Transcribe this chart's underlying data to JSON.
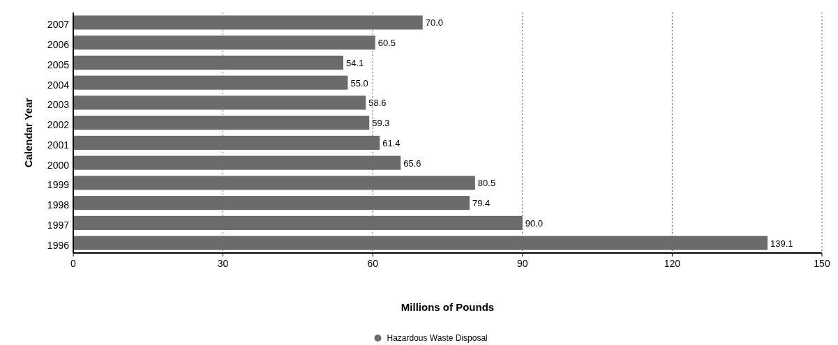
{
  "chart_data": {
    "type": "bar",
    "orientation": "horizontal",
    "xlabel": "Millions of Pounds",
    "ylabel": "Calendar Year",
    "categories": [
      "2007",
      "2006",
      "2005",
      "2004",
      "2003",
      "2002",
      "2001",
      "2000",
      "1999",
      "1998",
      "1997",
      "1996"
    ],
    "series": [
      {
        "name": "Hazardous Waste Disposal",
        "color": "#6b6b6b",
        "values": [
          70.0,
          60.5,
          54.1,
          55.0,
          58.6,
          59.3,
          61.4,
          65.6,
          80.5,
          79.4,
          90.0,
          139.1
        ],
        "value_labels": [
          "70.0",
          "60.5",
          "54.1",
          "55.0",
          "58.6",
          "59.3",
          "61.4",
          "65.6",
          "80.5",
          "79.4",
          "90.0",
          "139.1"
        ]
      }
    ],
    "xlim": [
      0,
      150
    ],
    "xticks": [
      0,
      30,
      60,
      90,
      120,
      150
    ],
    "grid": "x",
    "legend": "bottom"
  }
}
